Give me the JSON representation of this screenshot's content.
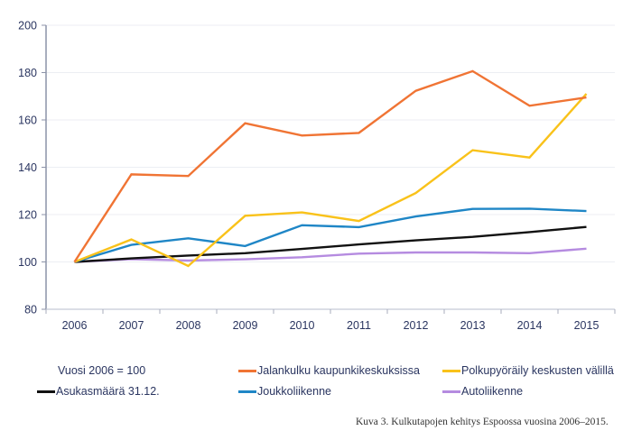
{
  "chart_data": {
    "type": "line",
    "title": "",
    "xlabel": "",
    "ylabel": "",
    "note": "Vuosi 2006 = 100",
    "x": [
      "2006",
      "2007",
      "2008",
      "2009",
      "2010",
      "2011",
      "2012",
      "2013",
      "2014",
      "2015"
    ],
    "ylim": [
      80,
      200
    ],
    "yticks": [
      "80",
      "100",
      "120",
      "140",
      "160",
      "180",
      "200"
    ],
    "grid": true,
    "legend_position": "bottom",
    "series": [
      {
        "name": "Jalankulku kaupunkikeskuksissa",
        "color": "#f07434",
        "values": [
          100,
          137,
          136.3,
          158.6,
          153.4,
          154.5,
          172.3,
          180.6,
          166,
          169.5
        ]
      },
      {
        "name": "Polkupyöräily keskusten välillä",
        "color": "#f9c21a",
        "values": [
          100,
          109.5,
          98.3,
          119.5,
          120.9,
          117.3,
          129.1,
          147.2,
          144.1,
          171
        ]
      },
      {
        "name": "Asukasmäärä 31.12.",
        "color": "#111111",
        "values": [
          100,
          101.5,
          102.7,
          103.7,
          105.5,
          107.4,
          109.1,
          110.6,
          112.6,
          114.8
        ]
      },
      {
        "name": "Joukkoliikenne",
        "color": "#1f86c6",
        "values": [
          100,
          107.2,
          110,
          106.7,
          115.5,
          114.7,
          119.2,
          122.4,
          122.5,
          121.5
        ]
      },
      {
        "name": "Autoliikenne",
        "color": "#b58be0",
        "values": [
          100,
          101.2,
          100.6,
          101.1,
          102,
          103.5,
          104,
          104,
          103.7,
          105.6
        ]
      }
    ]
  },
  "caption": "Kuva 3. Kulkutapojen kehitys Espoossa vuosina 2006–2015."
}
